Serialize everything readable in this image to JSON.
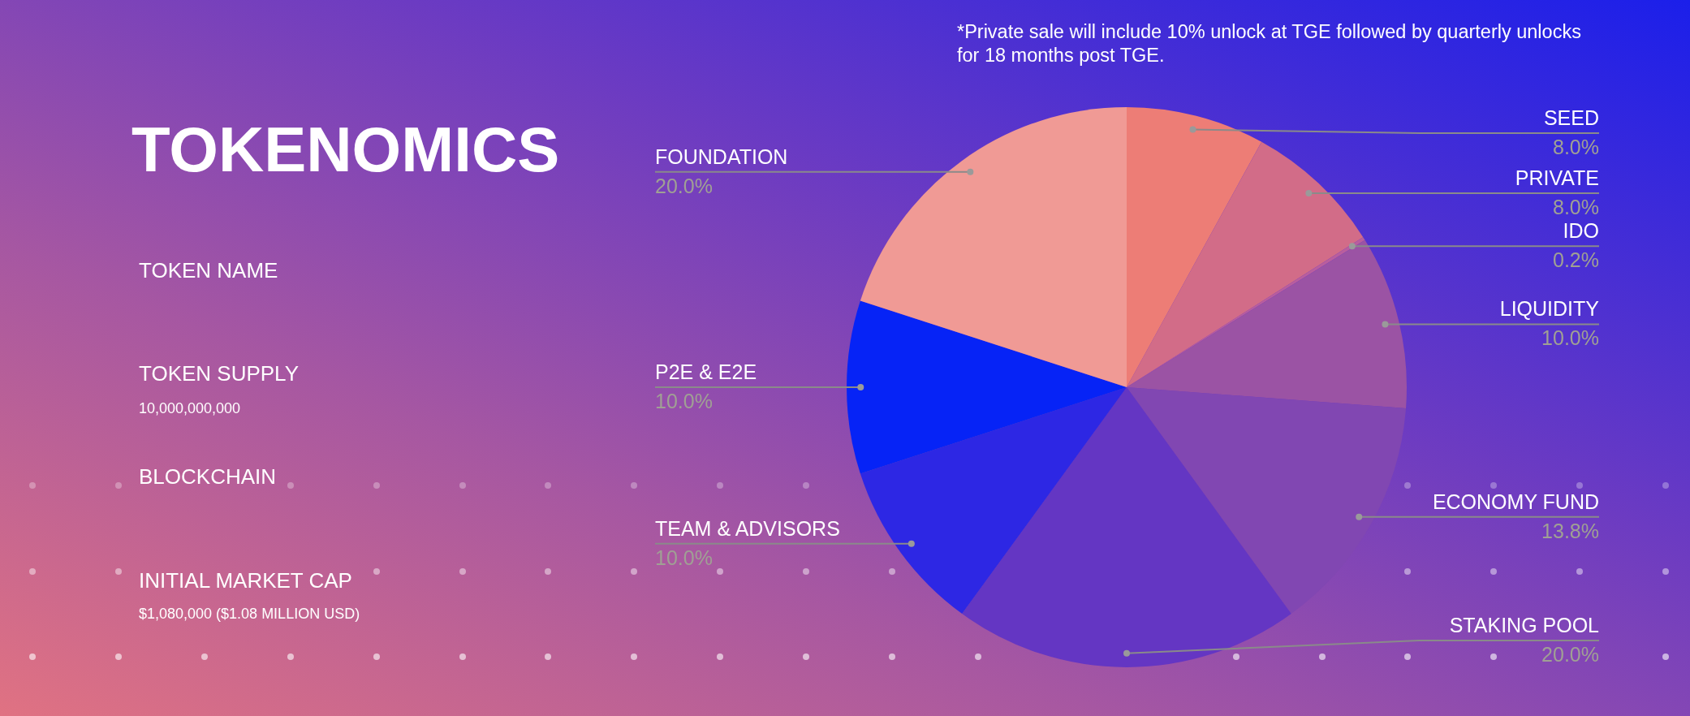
{
  "chart_data": [
    {
      "type": "other",
      "title": "TOKENOMICS",
      "annotations": [
        "TOKEN NAME",
        "TOKEN SUPPLY",
        "10,000,000,000",
        "BLOCKCHAIN",
        "INITIAL MARKET CAP",
        "$1,080,000 ($1.08 MILLION USD)"
      ]
    },
    {
      "type": "pie",
      "annotations": [
        "*Private sale will include 10% unlock at TGE followed by quarterly unlocks for 18 months post TGE."
      ],
      "categories": [
        "SEED",
        "PRIVATE",
        "IDO",
        "LIQUIDITY",
        "ECONOMY FUND",
        "STAKING POOL",
        "TEAM & ADVISORS",
        "P2E & E2E",
        "FOUNDATION"
      ],
      "values": [
        8.0,
        8.0,
        0.2,
        10.0,
        13.8,
        20.0,
        10.0,
        10.0,
        20.0
      ],
      "colors": [
        "#ed7d76",
        "#d26c88",
        "#b95e9e",
        "#9b53a4",
        "#8147b2",
        "#6436c3",
        "#2d27e4",
        "#0623f6",
        "#f09a95"
      ],
      "value_labels": [
        "8.0%",
        "8.0%",
        "0.2%",
        "10.0%",
        "13.8%",
        "20.0%",
        "10.0%",
        "10.0%",
        "20.0%"
      ]
    }
  ]
}
